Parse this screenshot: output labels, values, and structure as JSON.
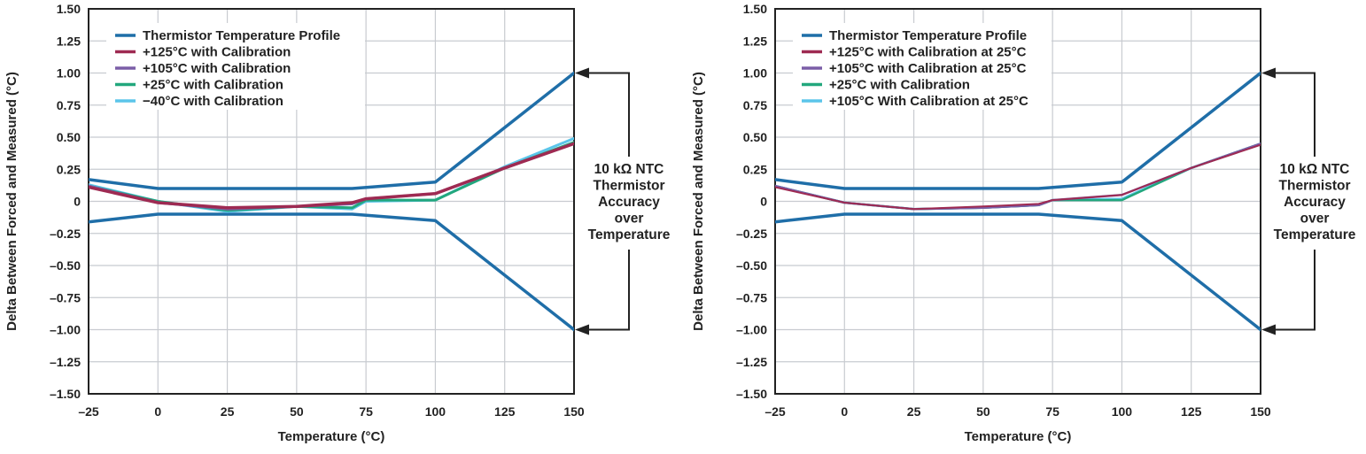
{
  "chart_data": [
    {
      "type": "line",
      "xlabel": "Temperature (°C)",
      "ylabel": "Delta Between Forced and Measured (°C)",
      "xlim": [
        -25,
        150
      ],
      "ylim": [
        -1.5,
        1.5
      ],
      "xticks": [
        -25,
        0,
        25,
        50,
        75,
        100,
        125,
        150
      ],
      "xtick_labels": [
        "–25",
        "0",
        "25",
        "50",
        "75",
        "100",
        "125",
        "150"
      ],
      "yticks": [
        1.5,
        1.25,
        1.0,
        0.75,
        0.5,
        0.25,
        0,
        -0.25,
        -0.5,
        -0.75,
        -1.0,
        -1.25,
        -1.5
      ],
      "ytick_labels": [
        "1.50",
        "1.25",
        "1.00",
        "0.75",
        "0.50",
        "0.25",
        "0",
        "–0.25",
        "–0.50",
        "–0.75",
        "–1.00",
        "–1.25",
        "–1.50"
      ],
      "grid": true,
      "legend_position": "top-left",
      "annotation": [
        "10 kΩ NTC",
        "Thermistor",
        "Accuracy",
        "over",
        "Temperature"
      ],
      "series": [
        {
          "name": "Thermistor Temperature Profile",
          "color": "#1f6ea8",
          "width": 3.5,
          "x": [
            -25,
            0,
            70,
            100,
            150
          ],
          "y": [
            0.17,
            0.1,
            0.1,
            0.15,
            1.0
          ]
        },
        {
          "name": "",
          "legend": false,
          "color": "#1f6ea8",
          "width": 3.5,
          "x": [
            -25,
            0,
            70,
            100,
            150
          ],
          "y": [
            -0.16,
            -0.1,
            -0.1,
            -0.15,
            -1.0
          ]
        },
        {
          "name": "−40°C with Calibration",
          "color": "#5bc5ea",
          "width": 3,
          "x": [
            -25,
            0,
            25,
            50,
            70,
            75,
            100,
            125,
            150
          ],
          "y": [
            0.13,
            0.0,
            -0.08,
            -0.04,
            -0.06,
            0.0,
            0.01,
            0.27,
            0.49
          ]
        },
        {
          "name": "+25°C with Calibration",
          "color": "#22a77d",
          "width": 3,
          "x": [
            -25,
            0,
            25,
            50,
            70,
            75,
            100,
            125,
            150
          ],
          "y": [
            0.12,
            0.0,
            -0.07,
            -0.04,
            -0.05,
            0.01,
            0.01,
            0.26,
            0.46
          ]
        },
        {
          "name": "+105°C with Calibration",
          "color": "#7b5ea7",
          "width": 3,
          "x": [
            -25,
            0,
            25,
            50,
            70,
            75,
            100,
            125,
            150
          ],
          "y": [
            0.12,
            -0.01,
            -0.06,
            -0.04,
            -0.02,
            0.02,
            0.06,
            0.26,
            0.45
          ]
        },
        {
          "name": "+125°C with Calibration",
          "color": "#9e2a52",
          "width": 3.5,
          "x": [
            -25,
            0,
            25,
            50,
            70,
            75,
            100,
            125,
            150
          ],
          "y": [
            0.11,
            -0.01,
            -0.05,
            -0.04,
            -0.01,
            0.02,
            0.06,
            0.26,
            0.45
          ]
        }
      ]
    },
    {
      "type": "line",
      "xlabel": "Temperature (°C)",
      "ylabel": "Delta Between Forced and Measured (°C)",
      "xlim": [
        -25,
        150
      ],
      "ylim": [
        -1.5,
        1.5
      ],
      "xticks": [
        -25,
        0,
        25,
        50,
        75,
        100,
        125,
        150
      ],
      "xtick_labels": [
        "–25",
        "0",
        "25",
        "50",
        "75",
        "100",
        "125",
        "150"
      ],
      "yticks": [
        1.5,
        1.25,
        1.0,
        0.75,
        0.5,
        0.25,
        0,
        -0.25,
        -0.5,
        -0.75,
        -1.0,
        -1.25,
        -1.5
      ],
      "ytick_labels": [
        "1.50",
        "1.25",
        "1.00",
        "0.75",
        "0.50",
        "0.25",
        "0",
        "–0.25",
        "–0.50",
        "–0.75",
        "–1.00",
        "–1.25",
        "–1.50"
      ],
      "grid": true,
      "legend_position": "top-left",
      "annotation": [
        "10 kΩ NTC",
        "Thermistor",
        "Accuracy",
        "over",
        "Temperature"
      ],
      "series": [
        {
          "name": "Thermistor Temperature Profile",
          "color": "#1f6ea8",
          "width": 3.5,
          "x": [
            -25,
            0,
            70,
            100,
            150
          ],
          "y": [
            0.17,
            0.1,
            0.1,
            0.15,
            1.0
          ]
        },
        {
          "name": "",
          "legend": false,
          "color": "#1f6ea8",
          "width": 3.5,
          "x": [
            -25,
            0,
            70,
            100,
            150
          ],
          "y": [
            -0.16,
            -0.1,
            -0.1,
            -0.15,
            -1.0
          ]
        },
        {
          "name": "+105°C With Calibration at 25°C",
          "color": "#5bc5ea",
          "width": 2.5,
          "x": [
            -25,
            0,
            25,
            50,
            70,
            75,
            100,
            125,
            150
          ],
          "y": [
            0.12,
            -0.01,
            -0.06,
            -0.05,
            -0.03,
            0.01,
            0.02,
            0.26,
            0.45
          ]
        },
        {
          "name": "+25°C with Calibration",
          "color": "#22a77d",
          "width": 2.5,
          "x": [
            -25,
            0,
            25,
            50,
            70,
            75,
            100,
            125,
            150
          ],
          "y": [
            0.12,
            -0.01,
            -0.06,
            -0.05,
            -0.03,
            0.01,
            0.01,
            0.26,
            0.45
          ]
        },
        {
          "name": "+105°C with Calibration at 25°C",
          "color": "#7b5ea7",
          "width": 2.5,
          "x": [
            -25,
            0,
            25,
            50,
            70,
            75,
            100,
            125,
            150
          ],
          "y": [
            0.12,
            -0.01,
            -0.06,
            -0.05,
            -0.03,
            0.01,
            0.05,
            0.26,
            0.45
          ]
        },
        {
          "name": "+125°C with Calibration at 25°C",
          "color": "#9e2a52",
          "width": 2,
          "x": [
            -25,
            0,
            25,
            50,
            70,
            75,
            100,
            125,
            150
          ],
          "y": [
            0.11,
            -0.01,
            -0.06,
            -0.04,
            -0.02,
            0.01,
            0.05,
            0.26,
            0.44
          ]
        }
      ],
      "legend_order": [
        "Thermistor Temperature Profile",
        "+125°C with Calibration at 25°C",
        "+105°C with Calibration at 25°C",
        "+25°C with Calibration",
        "+105°C With Calibration at 25°C"
      ]
    }
  ],
  "legend_order_left": [
    "Thermistor Temperature Profile",
    "+125°C with Calibration",
    "+105°C with Calibration",
    "+25°C with Calibration",
    "−40°C with Calibration"
  ]
}
